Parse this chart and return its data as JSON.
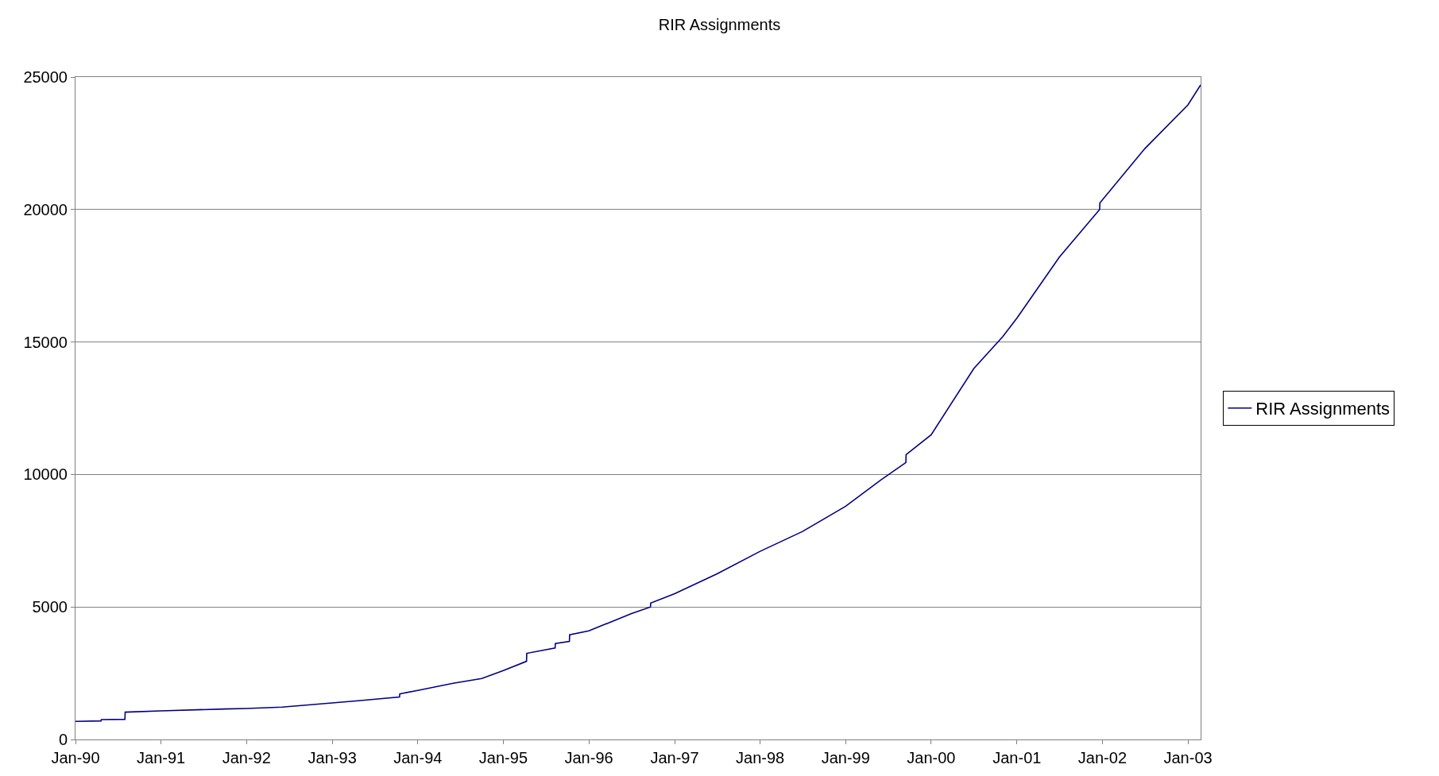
{
  "chart_data": {
    "type": "line",
    "title": "RIR Assignments",
    "series": [
      {
        "name": "RIR Assignments",
        "color": "#000080",
        "x": [
          "1990-01-01",
          "1990-04-20",
          "1990-04-21",
          "1990-07-31",
          "1990-08-01",
          "1991-01-01",
          "1991-10-01",
          "1992-01-01",
          "1992-06-01",
          "1993-01-01",
          "1993-05-01",
          "1993-10-15",
          "1993-10-16",
          "1994-01-01",
          "1994-06-01",
          "1994-10-01",
          "1995-01-01",
          "1995-04-10",
          "1995-04-11",
          "1995-08-10",
          "1995-08-11",
          "1995-10-10",
          "1995-10-11",
          "1996-01-01",
          "1996-07-01",
          "1996-09-20",
          "1996-09-21",
          "1997-01-01",
          "1997-07-01",
          "1998-01-01",
          "1998-07-01",
          "1999-01-01",
          "1999-06-01",
          "1999-09-15",
          "1999-09-16",
          "2000-01-01",
          "2000-07-01",
          "2000-11-01",
          "2001-01-01",
          "2001-07-01",
          "2001-12-20",
          "2001-12-21",
          "2002-07-01",
          "2003-01-01",
          "2003-02-24"
        ],
        "values": [
          680,
          700,
          750,
          760,
          1030,
          1080,
          1150,
          1170,
          1220,
          1380,
          1470,
          1600,
          1720,
          1850,
          2120,
          2300,
          2600,
          2950,
          3250,
          3450,
          3620,
          3700,
          3950,
          4100,
          4750,
          5000,
          5150,
          5500,
          6250,
          7100,
          7850,
          8800,
          9800,
          10450,
          10750,
          11500,
          14000,
          15200,
          15900,
          18200,
          20000,
          20250,
          22300,
          23950,
          24700
        ]
      }
    ],
    "xlim": [
      "1990-01-01",
      "2003-02-24"
    ],
    "xticks": [
      {
        "value": "1990-01-01",
        "label": "Jan-90"
      },
      {
        "value": "1991-01-01",
        "label": "Jan-91"
      },
      {
        "value": "1992-01-01",
        "label": "Jan-92"
      },
      {
        "value": "1993-01-01",
        "label": "Jan-93"
      },
      {
        "value": "1994-01-01",
        "label": "Jan-94"
      },
      {
        "value": "1995-01-01",
        "label": "Jan-95"
      },
      {
        "value": "1996-01-01",
        "label": "Jan-96"
      },
      {
        "value": "1997-01-01",
        "label": "Jan-97"
      },
      {
        "value": "1998-01-01",
        "label": "Jan-98"
      },
      {
        "value": "1999-01-01",
        "label": "Jan-99"
      },
      {
        "value": "2000-01-01",
        "label": "Jan-00"
      },
      {
        "value": "2001-01-01",
        "label": "Jan-01"
      },
      {
        "value": "2002-01-01",
        "label": "Jan-02"
      },
      {
        "value": "2003-01-01",
        "label": "Jan-03"
      }
    ],
    "ylim": [
      0,
      25000
    ],
    "yticks": [
      0,
      5000,
      10000,
      15000,
      20000,
      25000
    ],
    "grid": "y",
    "legend": "right",
    "marker": "none",
    "line_style": "solid"
  }
}
